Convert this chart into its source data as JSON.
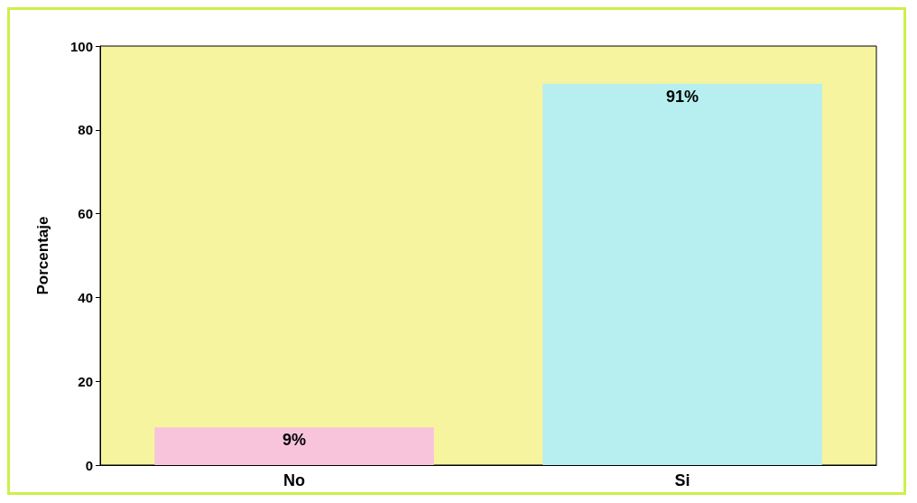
{
  "chart_data": {
    "type": "bar",
    "ylabel": "Porcentaje",
    "categories": [
      "No",
      "Si"
    ],
    "values": [
      9,
      91
    ],
    "colors": [
      "#f7c4dc",
      "#b7eff0"
    ],
    "value_labels": [
      "9%",
      "91%"
    ],
    "ylim": [
      0,
      100
    ],
    "yticks": [
      0,
      20,
      40,
      60,
      80,
      100
    ],
    "grid": false
  }
}
